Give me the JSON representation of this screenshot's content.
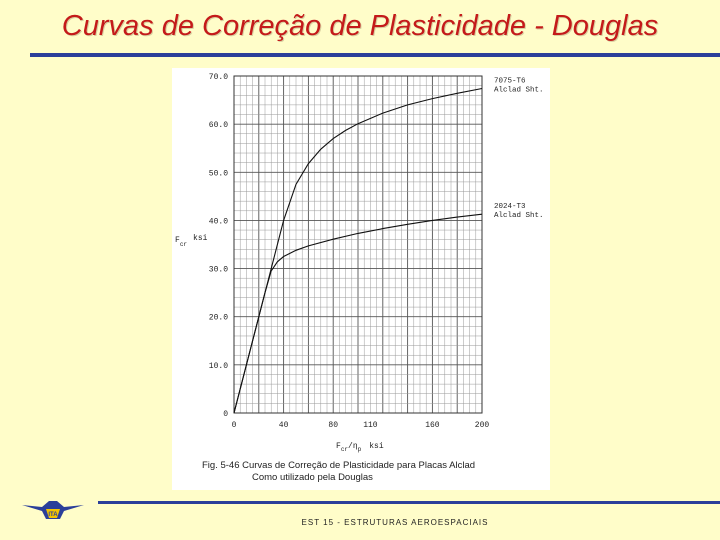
{
  "slide": {
    "title": "Curvas de Correção de Plasticidade - Douglas",
    "footer": "EST 15  -  ESTRUTURAS AEROESPACIAIS",
    "logo_text": "ITA",
    "accent_color": "#2b3f9a",
    "title_color": "#c41a1a"
  },
  "chart_data": {
    "type": "line",
    "ylabel_main": "F",
    "ylabel_sub": "cr",
    "ylabel_unit": "ksi",
    "xlabel_main": "F",
    "xlabel_sub": "cr",
    "xlabel_slash": "/η",
    "xlabel_sub2": "p",
    "xlabel_unit": "ksi",
    "xlim": [
      0,
      200
    ],
    "ylim": [
      0,
      70
    ],
    "x_ticks": [
      0,
      40,
      80,
      110,
      160,
      200
    ],
    "x_tick_labels": [
      "0",
      "40",
      "80",
      "110",
      "160",
      "200"
    ],
    "y_ticks": [
      0,
      10,
      20,
      30,
      40,
      50,
      60,
      70
    ],
    "y_tick_labels": [
      "0",
      "10.0",
      "20.0",
      "30.0",
      "40.0",
      "50.0",
      "60.0",
      "70.0"
    ],
    "grid": true,
    "series": [
      {
        "name": "7075-T6",
        "name_line2": "Alclad Sht.",
        "x": [
          0,
          10,
          20,
          30,
          40,
          50,
          60,
          70,
          80,
          90,
          100,
          120,
          140,
          160,
          180,
          200
        ],
        "y": [
          0,
          10,
          20,
          30,
          40,
          47.5,
          51.8,
          54.8,
          57,
          58.7,
          60.1,
          62.3,
          64,
          65.3,
          66.4,
          67.4
        ]
      },
      {
        "name": "2024-T3",
        "name_line2": "Alclad Sht.",
        "x": [
          0,
          10,
          20,
          25,
          30,
          35,
          40,
          50,
          60,
          80,
          100,
          120,
          140,
          160,
          180,
          200
        ],
        "y": [
          0,
          10,
          20,
          25,
          29.5,
          31.4,
          32.5,
          33.8,
          34.7,
          36.1,
          37.3,
          38.3,
          39.2,
          40,
          40.7,
          41.3
        ]
      }
    ],
    "caption_line1": "Fig. 5-46  Curvas de Correção de Plasticidade para Placas Alclad",
    "caption_line2": "Como utilizado pela Douglas"
  }
}
